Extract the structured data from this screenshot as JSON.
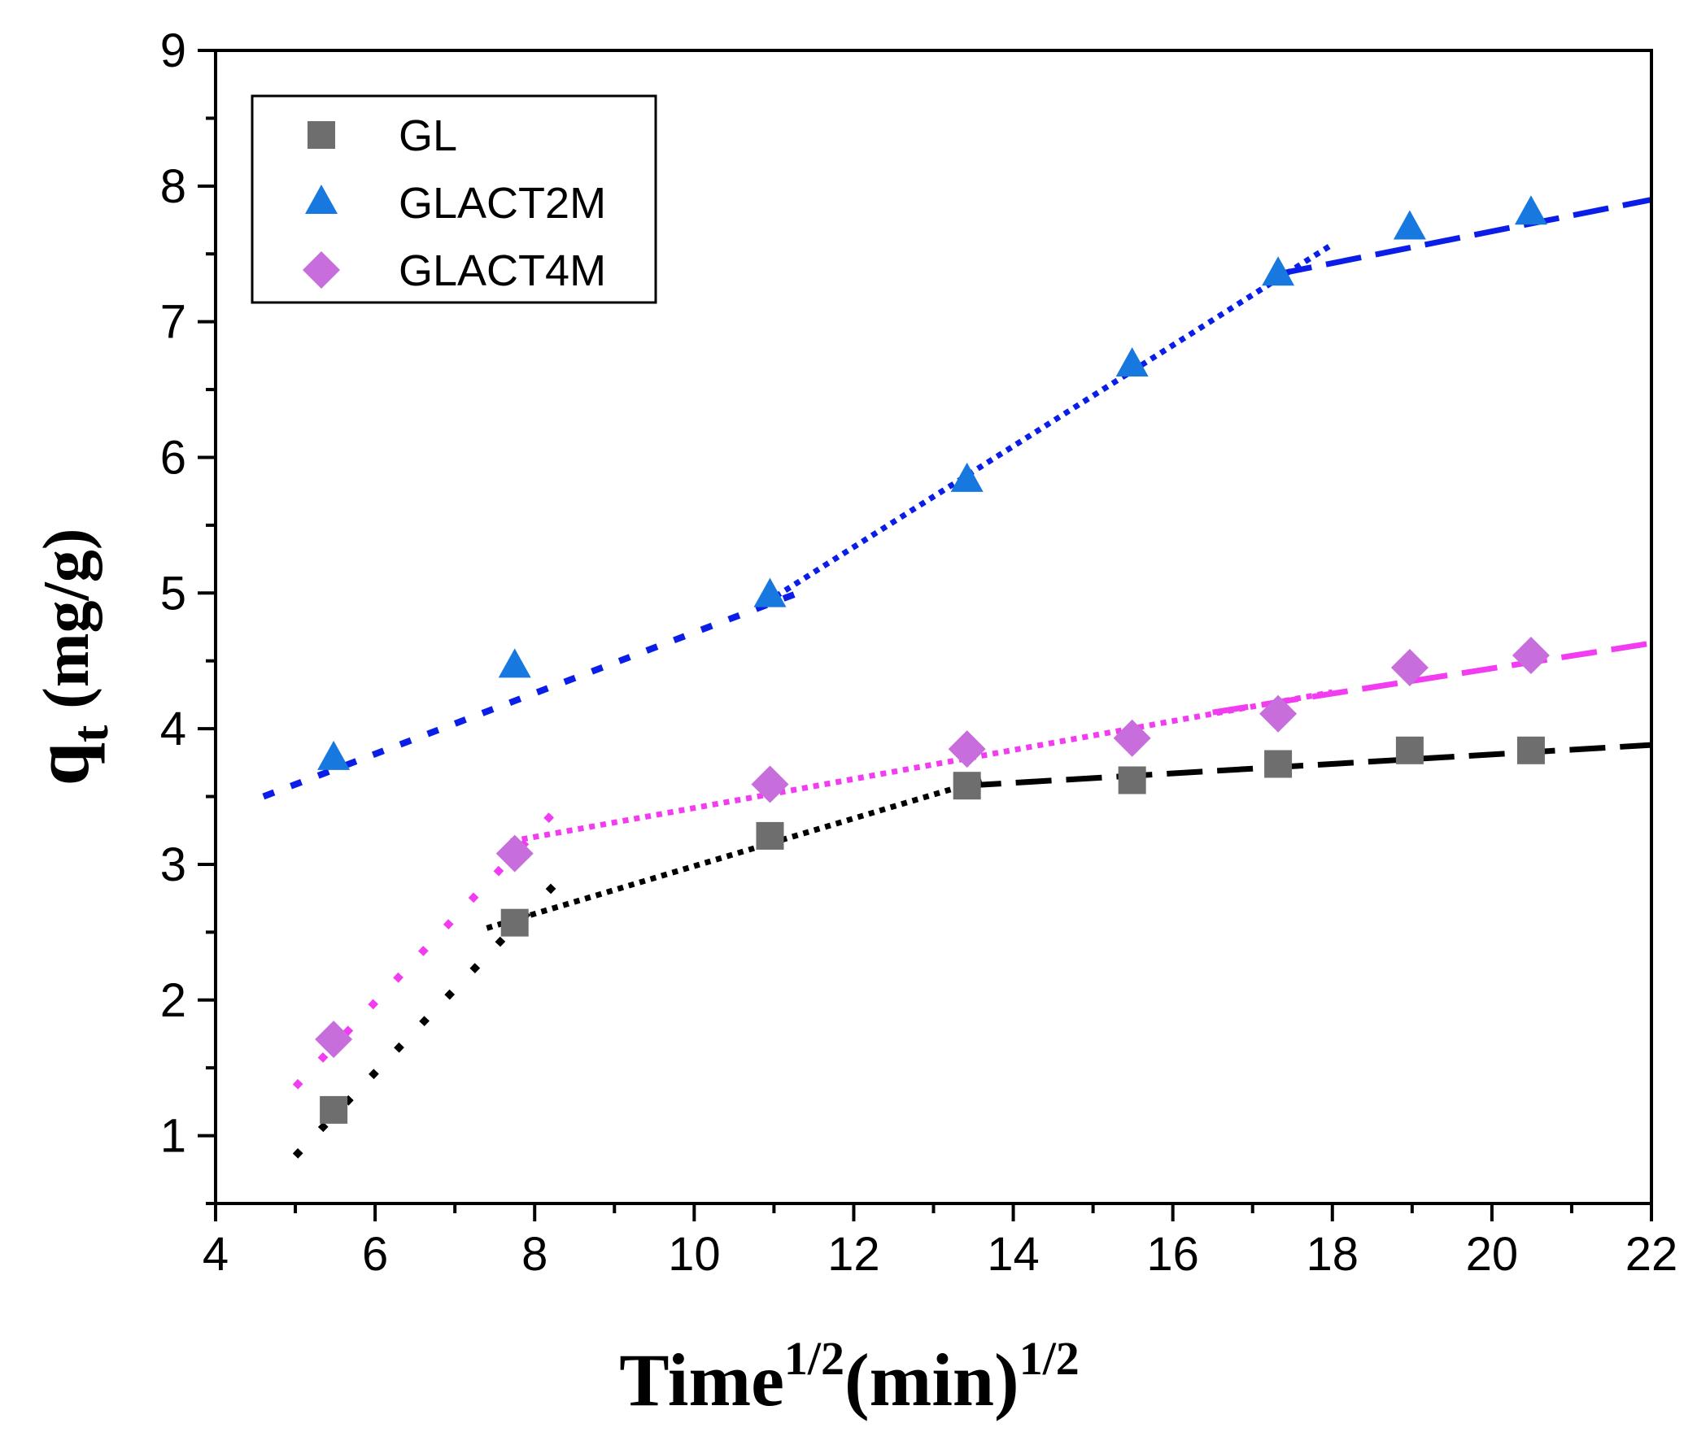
{
  "chart_data": {
    "type": "scatter",
    "xlabel": {
      "main": "Time",
      "sup1": "1/2",
      "unit": "(min)",
      "sup2": "1/2"
    },
    "ylabel": {
      "main": "q",
      "sub": "t",
      "unit": " (mg/g)"
    },
    "xlim": [
      4,
      22
    ],
    "ylim": [
      0.5,
      9
    ],
    "x_ticks": [
      4,
      6,
      8,
      10,
      12,
      14,
      16,
      18,
      20,
      22
    ],
    "y_ticks": [
      1,
      2,
      3,
      4,
      5,
      6,
      7,
      8,
      9
    ],
    "grid": false,
    "legend_position": "top-left",
    "series": [
      {
        "name": "GL",
        "marker": "square",
        "color": "#6e6e6e",
        "x": [
          5.48,
          7.75,
          10.95,
          13.42,
          15.49,
          17.32,
          18.97,
          20.49
        ],
        "y": [
          1.19,
          2.57,
          3.21,
          3.58,
          3.62,
          3.74,
          3.84,
          3.84
        ]
      },
      {
        "name": "GLACT2M",
        "marker": "triangle",
        "color": "#1778e0",
        "x": [
          5.48,
          7.75,
          10.95,
          13.42,
          15.49,
          17.32,
          18.97,
          20.49
        ],
        "y": [
          3.78,
          4.46,
          4.98,
          5.83,
          6.68,
          7.35,
          7.69,
          7.8
        ]
      },
      {
        "name": "GLACT4M",
        "marker": "diamond",
        "color": "#c86ddc",
        "x": [
          5.48,
          7.75,
          10.95,
          13.42,
          15.49,
          17.32,
          18.97,
          20.49
        ],
        "y": [
          1.71,
          3.08,
          3.59,
          3.85,
          3.93,
          4.11,
          4.45,
          4.54
        ]
      }
    ],
    "fit_lines": [
      {
        "name": "GL-stage1",
        "color": "#000000",
        "style": "dotted-sparse",
        "x": [
          5.0,
          8.3
        ],
        "y": [
          0.85,
          2.88
        ]
      },
      {
        "name": "GL-stage2",
        "color": "#000000",
        "style": "dotted",
        "x": [
          7.4,
          13.6
        ],
        "y": [
          2.53,
          3.62
        ]
      },
      {
        "name": "GL-stage3",
        "color": "#000000",
        "style": "dashed",
        "x": [
          13.4,
          22.0
        ],
        "y": [
          3.58,
          3.88
        ]
      },
      {
        "name": "GLACT2M-stage1",
        "color": "#0a1ee8",
        "style": "dotted-short",
        "x": [
          4.6,
          11.3
        ],
        "y": [
          3.5,
          5.0
        ]
      },
      {
        "name": "GLACT2M-stage2",
        "color": "#0a1ee8",
        "style": "dotted",
        "x": [
          10.9,
          18.0
        ],
        "y": [
          4.93,
          7.57
        ]
      },
      {
        "name": "GLACT2M-stage3",
        "color": "#0a1ee8",
        "style": "dashed",
        "x": [
          17.3,
          22.0
        ],
        "y": [
          7.35,
          7.9
        ]
      },
      {
        "name": "GLACT4M-stage1",
        "color": "#f23cf2",
        "style": "dotted-sparse",
        "x": [
          5.0,
          8.3
        ],
        "y": [
          1.36,
          3.42
        ]
      },
      {
        "name": "GLACT4M-stage2",
        "color": "#f23cf2",
        "style": "dotted",
        "x": [
          7.7,
          18.0
        ],
        "y": [
          3.17,
          4.27
        ]
      },
      {
        "name": "GLACT4M-stage3",
        "color": "#f23cf2",
        "style": "dashed",
        "x": [
          16.5,
          22.0
        ],
        "y": [
          4.12,
          4.63
        ]
      }
    ]
  }
}
